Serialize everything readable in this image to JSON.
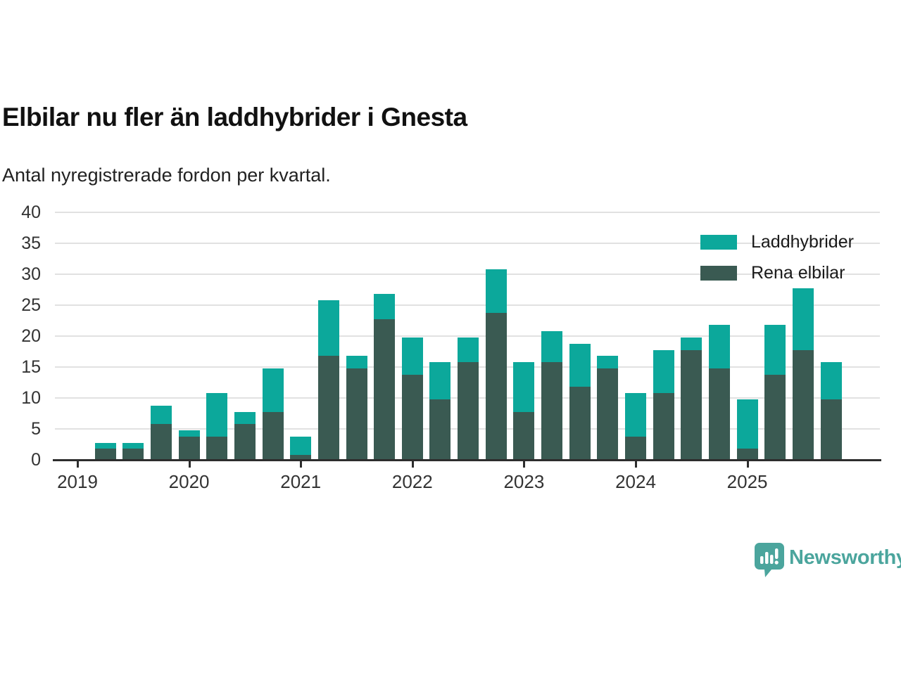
{
  "header": {
    "title": "Elbilar nu fler än laddhybrider i Gnesta",
    "subtitle": "Antal nyregistrerade fordon per kvartal."
  },
  "chart_data": {
    "type": "bar",
    "stacked": true,
    "title": "Elbilar nu fler än laddhybrider i Gnesta",
    "subtitle": "Antal nyregistrerade fordon per kvartal.",
    "categories": [
      "2019 Q2",
      "2019 Q3",
      "2019 Q4",
      "2020 Q1",
      "2020 Q2",
      "2020 Q3",
      "2020 Q4",
      "2021 Q1",
      "2021 Q2",
      "2021 Q3",
      "2021 Q4",
      "2022 Q1",
      "2022 Q2",
      "2022 Q3",
      "2022 Q4",
      "2023 Q1",
      "2023 Q2",
      "2023 Q3",
      "2023 Q4",
      "2024 Q1",
      "2024 Q2",
      "2024 Q3",
      "2024 Q4",
      "2025 Q1",
      "2025 Q2",
      "2025 Q3",
      "2025 Q4"
    ],
    "series": [
      {
        "name": "Laddhybrider",
        "color": "#0ca89b",
        "values": [
          1,
          1,
          3,
          1,
          7,
          2,
          7,
          3,
          9,
          2,
          4,
          6,
          6,
          4,
          7,
          8,
          5,
          7,
          2,
          7,
          7,
          2,
          7,
          8,
          8,
          10,
          6
        ]
      },
      {
        "name": "Rena elbilar",
        "color": "#3a5a52",
        "values": [
          2,
          2,
          6,
          4,
          4,
          6,
          8,
          1,
          17,
          15,
          23,
          14,
          10,
          16,
          24,
          8,
          16,
          12,
          15,
          4,
          11,
          18,
          15,
          2,
          14,
          18,
          10
        ]
      }
    ],
    "totals": [
      3,
      3,
      9,
      5,
      11,
      8,
      15,
      4,
      26,
      17,
      27,
      20,
      16,
      20,
      31,
      16,
      21,
      19,
      17,
      11,
      18,
      20,
      22,
      10,
      22,
      28,
      16
    ],
    "ylim": [
      0,
      40
    ],
    "yticks": [
      0,
      5,
      10,
      15,
      20,
      25,
      30,
      35,
      40
    ],
    "xticks": [
      "2019",
      "2020",
      "2021",
      "2022",
      "2023",
      "2024",
      "2025"
    ],
    "grid": "horizontal",
    "legend_position": "top-right"
  },
  "legend": {
    "items": [
      {
        "label": "Laddhybrider",
        "color": "#0ca89b"
      },
      {
        "label": "Rena elbilar",
        "color": "#3a5a52"
      }
    ]
  },
  "footer": {
    "brand": "Newsworthy",
    "brand_color": "#4ba59d"
  }
}
